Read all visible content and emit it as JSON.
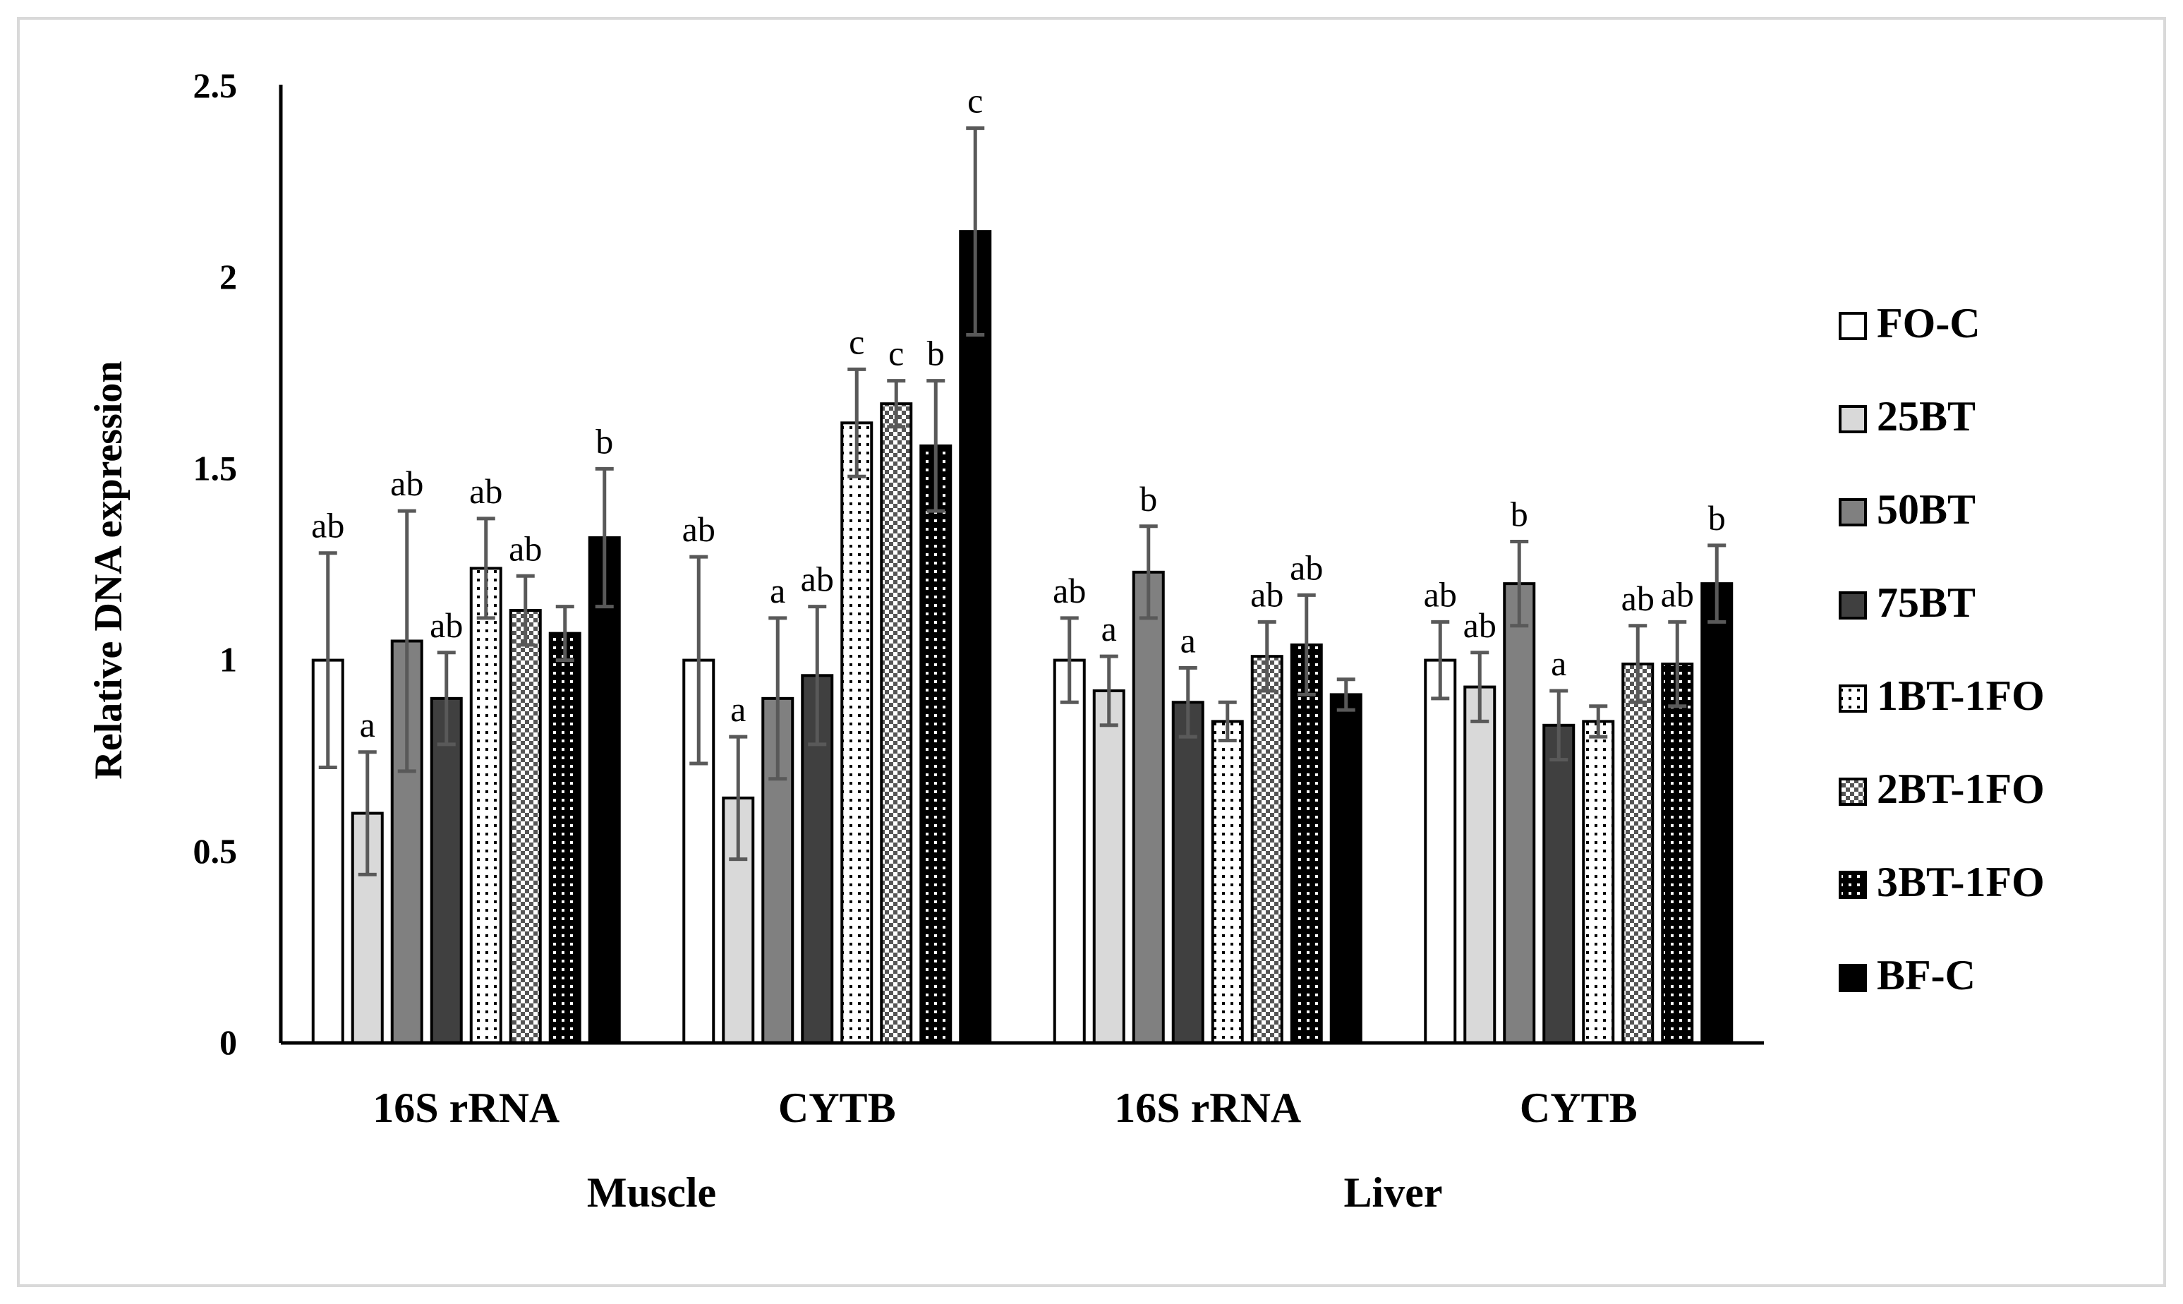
{
  "chart_data": {
    "type": "bar",
    "ylabel": "Relative DNA expression",
    "xlabel": "",
    "ylim": [
      0,
      2.5
    ],
    "yticks": [
      "0",
      "0.5",
      "1",
      "1.5",
      "2",
      "2.5"
    ],
    "categories": [
      "16S rRNA",
      "CYTB",
      "16S rRNA",
      "CYTB"
    ],
    "groups": [
      {
        "label": "Muscle",
        "span": [
          0,
          1
        ]
      },
      {
        "label": "Liver",
        "span": [
          2,
          3
        ]
      }
    ],
    "legend_position": "right",
    "grid": false,
    "series": [
      {
        "name": "FO-C",
        "fill": "#ffffff",
        "pattern": "none",
        "values": [
          1.0,
          1.0,
          1.0,
          1.0
        ],
        "errors": [
          0.28,
          0.27,
          0.11,
          0.1
        ],
        "letters": [
          "ab",
          "ab",
          "ab",
          "ab"
        ]
      },
      {
        "name": "25BT",
        "fill": "#d9d9d9",
        "pattern": "none",
        "values": [
          0.6,
          0.64,
          0.92,
          0.93
        ],
        "errors": [
          0.16,
          0.16,
          0.09,
          0.09
        ],
        "letters": [
          "a",
          "a",
          "a",
          "ab"
        ]
      },
      {
        "name": "50BT",
        "fill": "#808080",
        "pattern": "none",
        "values": [
          1.05,
          0.9,
          1.23,
          1.2
        ],
        "errors": [
          0.34,
          0.21,
          0.12,
          0.11
        ],
        "letters": [
          "ab",
          "a",
          "b",
          "b"
        ]
      },
      {
        "name": "75BT",
        "fill": "#404040",
        "pattern": "none",
        "values": [
          0.9,
          0.96,
          0.89,
          0.83
        ],
        "errors": [
          0.12,
          0.18,
          0.09,
          0.09
        ],
        "letters": [
          "ab",
          "ab",
          "a",
          "a"
        ]
      },
      {
        "name": "1BT-1FO",
        "fill": "#ffffff",
        "pattern": "dots-dark",
        "values": [
          1.24,
          1.62,
          0.84,
          0.84
        ],
        "errors": [
          0.13,
          0.14,
          0.05,
          0.04
        ],
        "letters": [
          "ab",
          "c",
          "",
          ""
        ]
      },
      {
        "name": "2BT-1FO",
        "fill": "#ffffff",
        "pattern": "check",
        "values": [
          1.13,
          1.67,
          1.01,
          0.99
        ],
        "errors": [
          0.09,
          0.06,
          0.09,
          0.1
        ],
        "letters": [
          "ab",
          "c",
          "ab",
          "ab"
        ]
      },
      {
        "name": "3BT-1FO",
        "fill": "#000000",
        "pattern": "dots-light",
        "values": [
          1.07,
          1.56,
          1.04,
          0.99
        ],
        "errors": [
          0.07,
          0.17,
          0.13,
          0.11
        ],
        "letters": [
          "",
          "b",
          "ab",
          "ab"
        ]
      },
      {
        "name": "BF-C",
        "fill": "#000000",
        "pattern": "none",
        "values": [
          1.32,
          2.12,
          0.91,
          1.2
        ],
        "errors": [
          0.18,
          0.27,
          0.04,
          0.1
        ],
        "letters": [
          "b",
          "c",
          "",
          "b"
        ]
      }
    ]
  }
}
